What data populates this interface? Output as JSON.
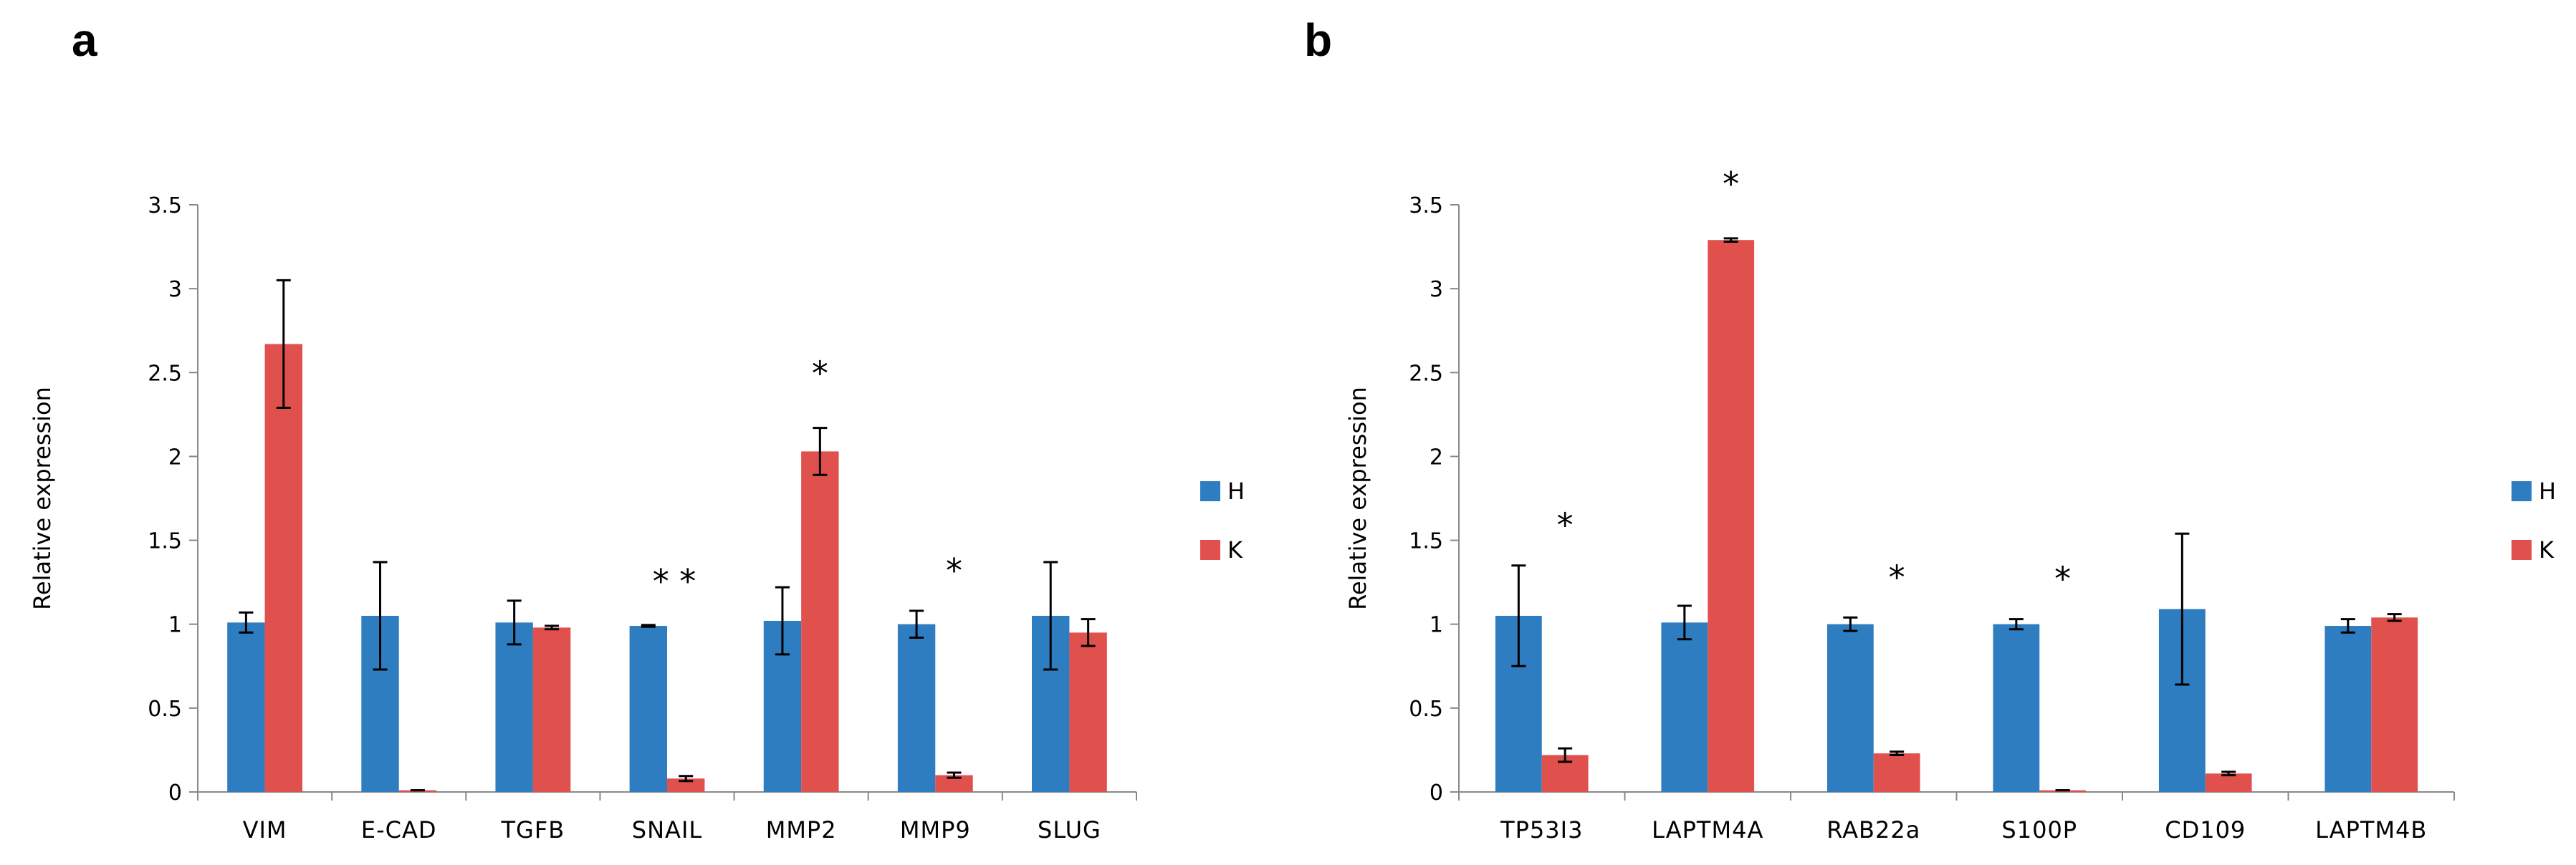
{
  "chart_data": [
    {
      "panel": "a",
      "type": "bar",
      "title": "",
      "xlabel": "",
      "ylabel": "Relative expression",
      "ylim": [
        0,
        3.5
      ],
      "yticks": [
        "0",
        "0.5",
        "1",
        "1.5",
        "2",
        "2.5",
        "3",
        "3.5"
      ],
      "legend_position": "right",
      "categories": [
        "VIM",
        "E-CAD",
        "TGFB",
        "SNAIL",
        "MMP2",
        "MMP9",
        "SLUG"
      ],
      "series": [
        {
          "name": "H",
          "color": "#2e7dc1",
          "values": [
            1.01,
            1.05,
            1.01,
            0.99,
            1.02,
            1.0,
            1.05
          ],
          "errors": [
            0.06,
            0.32,
            0.13,
            0.005,
            0.2,
            0.08,
            0.32
          ]
        },
        {
          "name": "K",
          "color": "#e0504d",
          "values": [
            2.67,
            0.01,
            0.98,
            0.08,
            2.03,
            0.1,
            0.95
          ],
          "errors": [
            0.38,
            0.0,
            0.01,
            0.015,
            0.14,
            0.015,
            0.08
          ]
        }
      ],
      "annotations": [
        {
          "category": "SNAIL",
          "text": "* *"
        },
        {
          "category": "MMP2",
          "text": "*"
        },
        {
          "category": "MMP9",
          "text": "*"
        }
      ]
    },
    {
      "panel": "b",
      "type": "bar",
      "title": "",
      "xlabel": "",
      "ylabel": "Relative expression",
      "ylim": [
        0,
        3.5
      ],
      "yticks": [
        "0",
        "0.5",
        "1",
        "1.5",
        "2",
        "2.5",
        "3",
        "3.5"
      ],
      "legend_position": "right",
      "categories": [
        "TP53I3",
        "LAPTM4A",
        "RAB22a",
        "S100P",
        "CD109",
        "LAPTM4B"
      ],
      "series": [
        {
          "name": "H",
          "color": "#2e7dc1",
          "values": [
            1.05,
            1.01,
            1.0,
            1.0,
            1.09,
            0.99
          ],
          "errors": [
            0.3,
            0.1,
            0.04,
            0.03,
            0.45,
            0.04
          ]
        },
        {
          "name": "K",
          "color": "#e0504d",
          "values": [
            0.22,
            3.29,
            0.23,
            0.01,
            0.11,
            1.04
          ],
          "errors": [
            0.04,
            0.01,
            0.01,
            0.0,
            0.01,
            0.02
          ]
        }
      ],
      "annotations": [
        {
          "category": "TP53I3",
          "text": "*"
        },
        {
          "category": "LAPTM4A",
          "text": "*"
        },
        {
          "category": "RAB22a",
          "text": "*"
        },
        {
          "category": "S100P",
          "text": "*"
        }
      ]
    }
  ]
}
